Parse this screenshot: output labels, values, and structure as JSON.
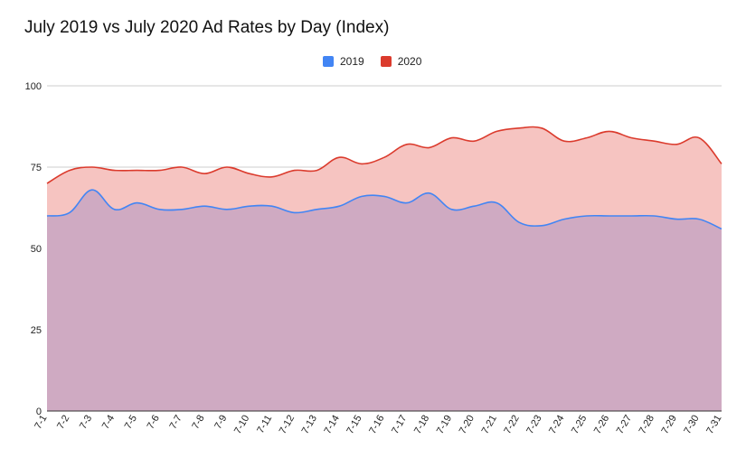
{
  "chart_data": {
    "type": "area",
    "title": "July 2019 vs July 2020 Ad Rates by Day (Index)",
    "xlabel": "",
    "ylabel": "",
    "ylim": [
      0,
      100
    ],
    "yticks": [
      "0",
      "25",
      "50",
      "75",
      "100"
    ],
    "grid": true,
    "legend_position": "top",
    "categories": [
      "7-1",
      "7-2",
      "7-3",
      "7-4",
      "7-5",
      "7-6",
      "7-7",
      "7-8",
      "7-9",
      "7-10",
      "7-11",
      "7-12",
      "7-13",
      "7-14",
      "7-15",
      "7-16",
      "7-17",
      "7-18",
      "7-19",
      "7-20",
      "7-21",
      "7-22",
      "7-23",
      "7-24",
      "7-25",
      "7-26",
      "7-27",
      "7-28",
      "7-29",
      "7-30",
      "7-31"
    ],
    "series": [
      {
        "name": "2019",
        "color": "#4285f4",
        "fill": "#cfaac2",
        "values": [
          60,
          61,
          68,
          62,
          64,
          62,
          62,
          63,
          62,
          63,
          63,
          61,
          62,
          63,
          66,
          66,
          64,
          67,
          62,
          63,
          64,
          58,
          57,
          59,
          60,
          60,
          60,
          60,
          59,
          59,
          56
        ]
      },
      {
        "name": "2020",
        "color": "#db3b2d",
        "fill": "#f6c4c1",
        "values": [
          70,
          74,
          75,
          74,
          74,
          74,
          75,
          73,
          75,
          73,
          72,
          74,
          74,
          78,
          76,
          78,
          82,
          81,
          84,
          83,
          86,
          87,
          87,
          83,
          84,
          86,
          84,
          83,
          82,
          84,
          76
        ]
      }
    ]
  }
}
